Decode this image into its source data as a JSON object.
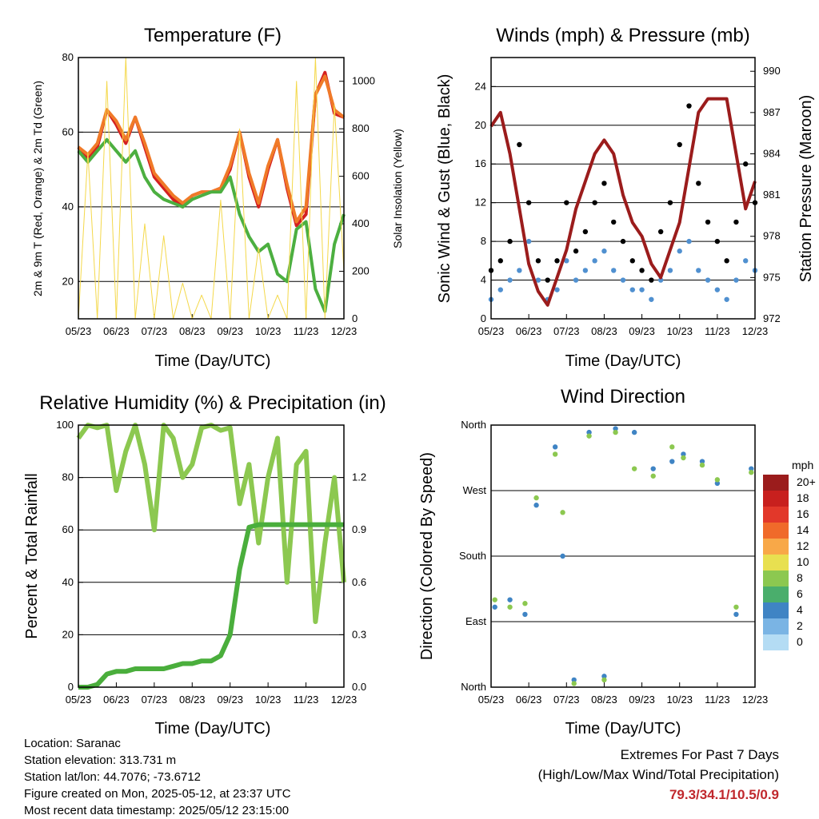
{
  "chart_data": [
    {
      "type": "line",
      "title": "Temperature (F)",
      "xlabel": "Time (Day/UTC)",
      "ylabel": "2m & 9m T (Red, Orange) & 2m Td (Green)",
      "y2label": "Solar Insolation (Yellow)",
      "x_ticks": [
        "05/23",
        "06/23",
        "07/23",
        "08/23",
        "09/23",
        "10/23",
        "11/23",
        "12/23"
      ],
      "ylim": [
        10,
        80
      ],
      "y_ticks": [
        20,
        40,
        60,
        80
      ],
      "y2lim": [
        0,
        1100
      ],
      "y2_ticks": [
        0,
        200,
        400,
        600,
        800,
        1000
      ],
      "grid": true,
      "x": [
        0,
        0.25,
        0.5,
        0.75,
        1.0,
        1.25,
        1.5,
        1.75,
        2.0,
        2.25,
        2.5,
        2.75,
        3.0,
        3.25,
        3.5,
        3.75,
        4.0,
        4.25,
        4.5,
        4.75,
        5.0,
        5.25,
        5.5,
        5.75,
        6.0,
        6.25,
        6.5,
        6.75,
        7.0
      ],
      "series": [
        {
          "color": "#d42020",
          "values": [
            56,
            53,
            56,
            66,
            62,
            57,
            64,
            56,
            48,
            45,
            42,
            40,
            43,
            44,
            44,
            45,
            50,
            60,
            48,
            40,
            50,
            58,
            45,
            35,
            38,
            70,
            76,
            65,
            64
          ]
        },
        {
          "color": "#f07a28",
          "values": [
            56,
            54,
            57,
            66,
            63,
            58,
            64,
            57,
            49,
            46,
            43,
            41,
            43,
            44,
            44,
            45,
            51,
            60,
            49,
            41,
            51,
            58,
            46,
            36,
            40,
            70,
            75,
            66,
            64
          ]
        },
        {
          "color": "#4caf40",
          "values": [
            55,
            52,
            55,
            58,
            55,
            52,
            55,
            48,
            44,
            42,
            41,
            40,
            42,
            43,
            44,
            44,
            48,
            38,
            32,
            28,
            30,
            22,
            20,
            34,
            36,
            18,
            12,
            30,
            38
          ]
        },
        {
          "color": "#f4d84a",
          "values": [
            0,
            700,
            0,
            1000,
            0,
            1100,
            0,
            400,
            0,
            350,
            0,
            150,
            0,
            100,
            0,
            500,
            0,
            800,
            0,
            300,
            0,
            100,
            0,
            1000,
            0,
            1100,
            0,
            900,
            200
          ]
        }
      ]
    },
    {
      "type": "scatter",
      "title": "Winds (mph) & Pressure (mb)",
      "xlabel": "Time (Day/UTC)",
      "ylabel": "Sonic Wind & Gust (Blue, Black)",
      "y2label": "Station Pressure (Maroon)",
      "x_ticks": [
        "05/23",
        "06/23",
        "07/23",
        "08/23",
        "09/23",
        "10/23",
        "11/23",
        "12/23"
      ],
      "ylim": [
        0,
        27
      ],
      "y_ticks": [
        0,
        4,
        8,
        12,
        16,
        20,
        24
      ],
      "y2lim": [
        972,
        991
      ],
      "y2_ticks": [
        972,
        975,
        978,
        981,
        984,
        987,
        990
      ],
      "grid": true,
      "x": [
        0,
        0.25,
        0.5,
        0.75,
        1.0,
        1.25,
        1.5,
        1.75,
        2.0,
        2.25,
        2.5,
        2.75,
        3.0,
        3.25,
        3.5,
        3.75,
        4.0,
        4.25,
        4.5,
        4.75,
        5.0,
        5.25,
        5.5,
        5.75,
        6.0,
        6.25,
        6.5,
        6.75,
        7.0
      ],
      "series": [
        {
          "color": "#5090d0",
          "values": [
            2,
            3,
            4,
            5,
            8,
            4,
            2,
            3,
            6,
            4,
            5,
            6,
            7,
            5,
            4,
            3,
            3,
            2,
            4,
            5,
            7,
            8,
            5,
            4,
            3,
            2,
            4,
            6,
            5
          ]
        },
        {
          "color": "#000000",
          "values": [
            5,
            6,
            8,
            18,
            12,
            6,
            4,
            6,
            12,
            7,
            9,
            12,
            14,
            10,
            8,
            6,
            5,
            4,
            9,
            12,
            18,
            22,
            14,
            10,
            8,
            6,
            10,
            16,
            12
          ]
        },
        {
          "color": "#9b1c1c",
          "values": [
            986,
            987,
            984,
            980,
            976,
            974,
            973,
            975,
            977,
            980,
            982,
            984,
            985,
            984,
            981,
            979,
            978,
            976,
            975,
            977,
            979,
            983,
            987,
            988,
            988,
            988,
            984,
            980,
            982
          ]
        }
      ]
    },
    {
      "type": "line",
      "title": "Relative Humidity (%) & Precipitation (in)",
      "xlabel": "Time (Day/UTC)",
      "ylabel": "Percent & Total Rainfall",
      "x_ticks": [
        "05/23",
        "06/23",
        "07/23",
        "08/23",
        "09/23",
        "10/23",
        "11/23",
        "12/23"
      ],
      "ylim": [
        0,
        100
      ],
      "y_ticks": [
        0,
        20,
        40,
        60,
        80,
        100
      ],
      "y2lim": [
        0,
        1.5
      ],
      "y2_ticks": [
        "0.0",
        "0.3",
        "0.6",
        "0.9",
        "1.2"
      ],
      "grid": true,
      "x": [
        0,
        0.25,
        0.5,
        0.75,
        1.0,
        1.25,
        1.5,
        1.75,
        2.0,
        2.25,
        2.5,
        2.75,
        3.0,
        3.25,
        3.5,
        3.75,
        4.0,
        4.25,
        4.5,
        4.75,
        5.0,
        5.25,
        5.5,
        5.75,
        6.0,
        6.25,
        6.5,
        6.75,
        7.0
      ],
      "series": [
        {
          "color": "#8cc850",
          "values": [
            95,
            100,
            99,
            100,
            75,
            90,
            100,
            85,
            60,
            100,
            95,
            80,
            85,
            99,
            100,
            98,
            99,
            70,
            85,
            55,
            80,
            95,
            40,
            85,
            90,
            25,
            55,
            80,
            40
          ]
        },
        {
          "color": "#4aae3c",
          "values": [
            0,
            0,
            1,
            5,
            6,
            6,
            7,
            7,
            7,
            7,
            8,
            9,
            9,
            10,
            10,
            12,
            20,
            45,
            61,
            62,
            62,
            62,
            62,
            62,
            62,
            62,
            62,
            62,
            62
          ]
        }
      ]
    },
    {
      "type": "scatter",
      "title": "Wind Direction",
      "xlabel": "Time (Day/UTC)",
      "ylabel": "Direction (Colored By Speed)",
      "x_ticks": [
        "05/23",
        "06/23",
        "07/23",
        "08/23",
        "09/23",
        "10/23",
        "11/23",
        "12/23"
      ],
      "y_ticks": [
        "North",
        "East",
        "South",
        "West",
        "North"
      ],
      "ylim": [
        0,
        360
      ],
      "grid": true,
      "legend": {
        "title": "mph",
        "placement": "right",
        "labels": [
          "20+",
          "18",
          "16",
          "14",
          "12",
          "10",
          "8",
          "6",
          "4",
          "2",
          "0"
        ],
        "colors": [
          "#9b1c1c",
          "#c8201e",
          "#e2382a",
          "#f06a2a",
          "#f8a848",
          "#e8e050",
          "#8cc850",
          "#4aae6c",
          "#3f84c4",
          "#7ab4e4",
          "#b4dcf4"
        ]
      },
      "x": [
        0.1,
        0.5,
        0.9,
        1.2,
        1.7,
        1.9,
        2.2,
        2.6,
        3.0,
        3.3,
        3.8,
        4.3,
        4.8,
        5.1,
        5.6,
        6.0,
        6.5,
        6.9
      ],
      "series": [
        {
          "color": "#3f84c4",
          "values": [
            110,
            120,
            100,
            250,
            330,
            180,
            10,
            350,
            15,
            355,
            350,
            300,
            310,
            320,
            310,
            280,
            100,
            300
          ]
        },
        {
          "color": "#8cc850",
          "values": [
            120,
            110,
            115,
            260,
            320,
            240,
            5,
            345,
            10,
            350,
            300,
            290,
            330,
            315,
            305,
            285,
            110,
            295
          ]
        }
      ]
    }
  ],
  "footer": {
    "location": "Location: Saranac",
    "elevation": "Station elevation: 313.731 m",
    "latlon": "Station lat/lon: 44.7076; -73.6712",
    "created": "Figure created on Mon, 2025-05-12, at 23:37 UTC",
    "recent": "Most recent data timestamp: 2025/05/12 23:15:00"
  },
  "extremes": {
    "title": "Extremes For Past 7 Days",
    "subtitle": "(High/Low/Max Wind/Total Precipitation)",
    "values": "79.3/34.1/10.5/0.9"
  }
}
